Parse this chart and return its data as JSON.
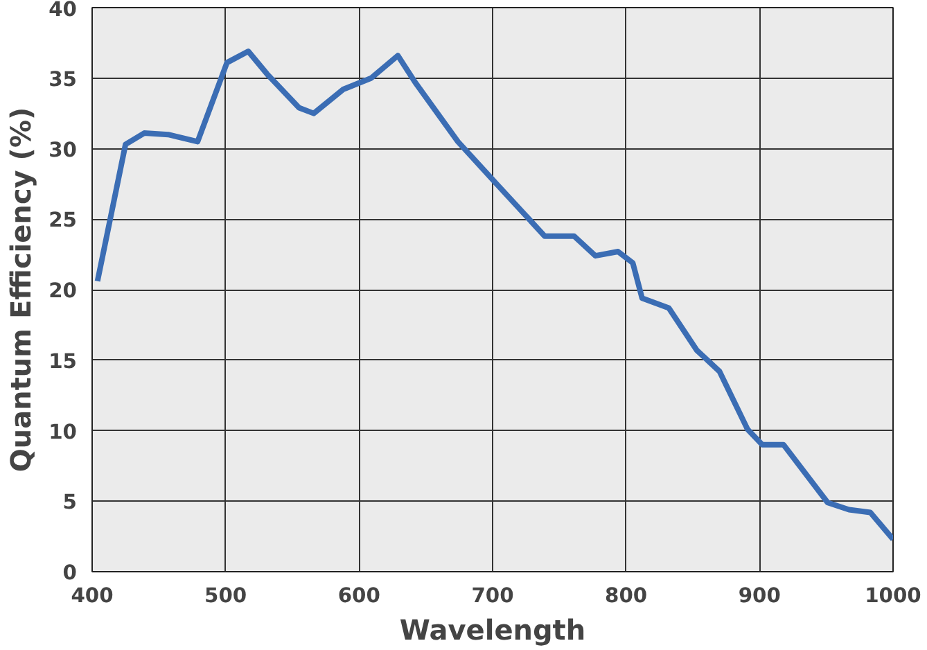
{
  "chart_data": {
    "type": "line",
    "xlabel": "Wavelength",
    "ylabel": "Quantum Efficiency (%)",
    "x": [
      404,
      425,
      439,
      457,
      479,
      501,
      517,
      531,
      555,
      566,
      588,
      609,
      629,
      642,
      674,
      702,
      739,
      761,
      777,
      794,
      805,
      812,
      832,
      853,
      870,
      891,
      902,
      918,
      951,
      967,
      983,
      1000
    ],
    "series": [
      {
        "color": "#3b6db4",
        "values": [
          20.6,
          30.3,
          31.1,
          31.0,
          30.5,
          36.1,
          36.9,
          35.3,
          32.9,
          32.5,
          34.2,
          35.0,
          36.6,
          34.7,
          30.5,
          27.6,
          23.8,
          23.8,
          22.4,
          22.7,
          21.9,
          19.4,
          18.7,
          15.7,
          14.2,
          10.1,
          9.0,
          9.0,
          4.9,
          4.4,
          4.2,
          2.3
        ]
      }
    ],
    "xlim": [
      400,
      1000
    ],
    "ylim": [
      0,
      40
    ],
    "xticks": [
      400,
      500,
      600,
      700,
      800,
      900,
      1000
    ],
    "yticks": [
      0,
      5,
      10,
      15,
      20,
      25,
      30,
      35,
      40
    ],
    "grid": true,
    "marker": "none",
    "line_style": "solid"
  }
}
